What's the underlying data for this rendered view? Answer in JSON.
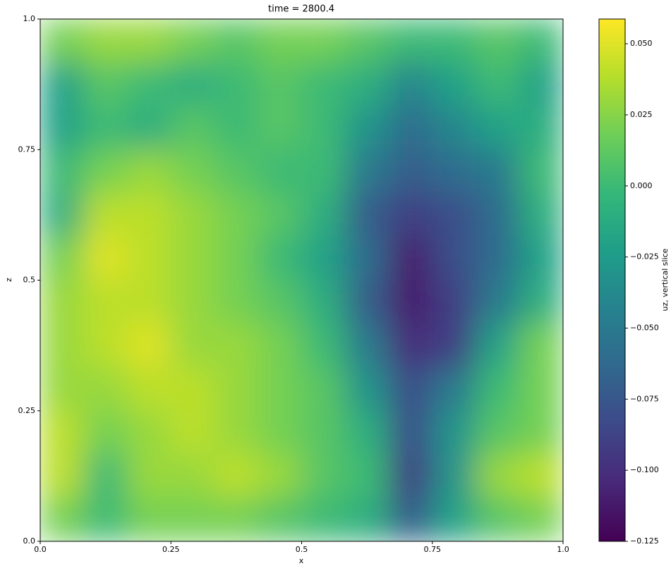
{
  "chart_data": {
    "type": "heatmap",
    "title": "time = 2800.4",
    "xlabel": "x",
    "ylabel": "z",
    "colorbar_label": "uz, vertical slice",
    "colormap": "viridis",
    "xlim": [
      0,
      1
    ],
    "ylim": [
      0,
      1
    ],
    "clim": [
      -0.125,
      0.0587
    ],
    "xticks": [
      {
        "value": 0,
        "label": "0.0"
      },
      0.25,
      0.5,
      0.75,
      {
        "value": 1,
        "label": "1.0"
      }
    ],
    "yticks": [
      {
        "value": 0,
        "label": "0.0"
      },
      0.25,
      0.5,
      0.75,
      {
        "value": 1,
        "label": "1.0"
      }
    ],
    "cticks": [
      {
        "value": 0.05,
        "label": "0.050"
      },
      0.025,
      {
        "value": 0,
        "label": "0.000"
      },
      {
        "value": -0.025,
        "label": "−0.025"
      },
      {
        "value": -0.05,
        "label": "−0.050"
      },
      {
        "value": -0.075,
        "label": "−0.075"
      },
      {
        "value": -0.1,
        "label": "−0.100"
      },
      {
        "value": -0.125,
        "label": "−0.125"
      }
    ],
    "values": [
      [
        0.02,
        0.03,
        0.03,
        0.02,
        0.01,
        0.02,
        0.02,
        0.01,
        0.0,
        0.0,
        0.01,
        0.0
      ],
      [
        -0.02,
        0.01,
        0.0,
        -0.01,
        0.0,
        0.01,
        0.0,
        -0.01,
        -0.04,
        -0.02,
        0.0,
        -0.02
      ],
      [
        -0.02,
        0.0,
        -0.01,
        0.01,
        0.0,
        0.01,
        0.0,
        -0.03,
        -0.06,
        -0.04,
        -0.02,
        -0.01
      ],
      [
        0.0,
        0.02,
        0.03,
        0.02,
        0.01,
        0.0,
        0.0,
        -0.05,
        -0.07,
        -0.06,
        -0.05,
        0.0
      ],
      [
        -0.01,
        0.04,
        0.04,
        0.03,
        0.02,
        0.01,
        -0.01,
        -0.07,
        -0.09,
        -0.08,
        -0.06,
        -0.01
      ],
      [
        0.02,
        0.05,
        0.04,
        0.03,
        0.02,
        0.0,
        -0.02,
        -0.06,
        -0.11,
        -0.08,
        -0.06,
        -0.02
      ],
      [
        0.03,
        0.04,
        0.04,
        0.03,
        0.02,
        0.01,
        -0.01,
        -0.07,
        -0.11,
        -0.09,
        -0.05,
        -0.01
      ],
      [
        0.03,
        0.04,
        0.05,
        0.03,
        0.03,
        0.02,
        0.0,
        -0.05,
        -0.1,
        -0.09,
        -0.02,
        0.02
      ],
      [
        0.03,
        0.03,
        0.04,
        0.04,
        0.03,
        0.02,
        0.01,
        -0.03,
        -0.08,
        -0.05,
        0.0,
        0.02
      ],
      [
        0.04,
        0.02,
        0.03,
        0.04,
        0.03,
        0.02,
        0.01,
        -0.01,
        -0.08,
        -0.03,
        0.01,
        0.02
      ],
      [
        0.04,
        0.0,
        0.03,
        0.03,
        0.04,
        0.03,
        0.01,
        0.0,
        -0.09,
        -0.03,
        0.03,
        0.04
      ],
      [
        0.02,
        0.0,
        0.02,
        0.02,
        0.02,
        0.01,
        0.0,
        -0.01,
        -0.07,
        -0.02,
        0.01,
        0.02
      ]
    ]
  }
}
